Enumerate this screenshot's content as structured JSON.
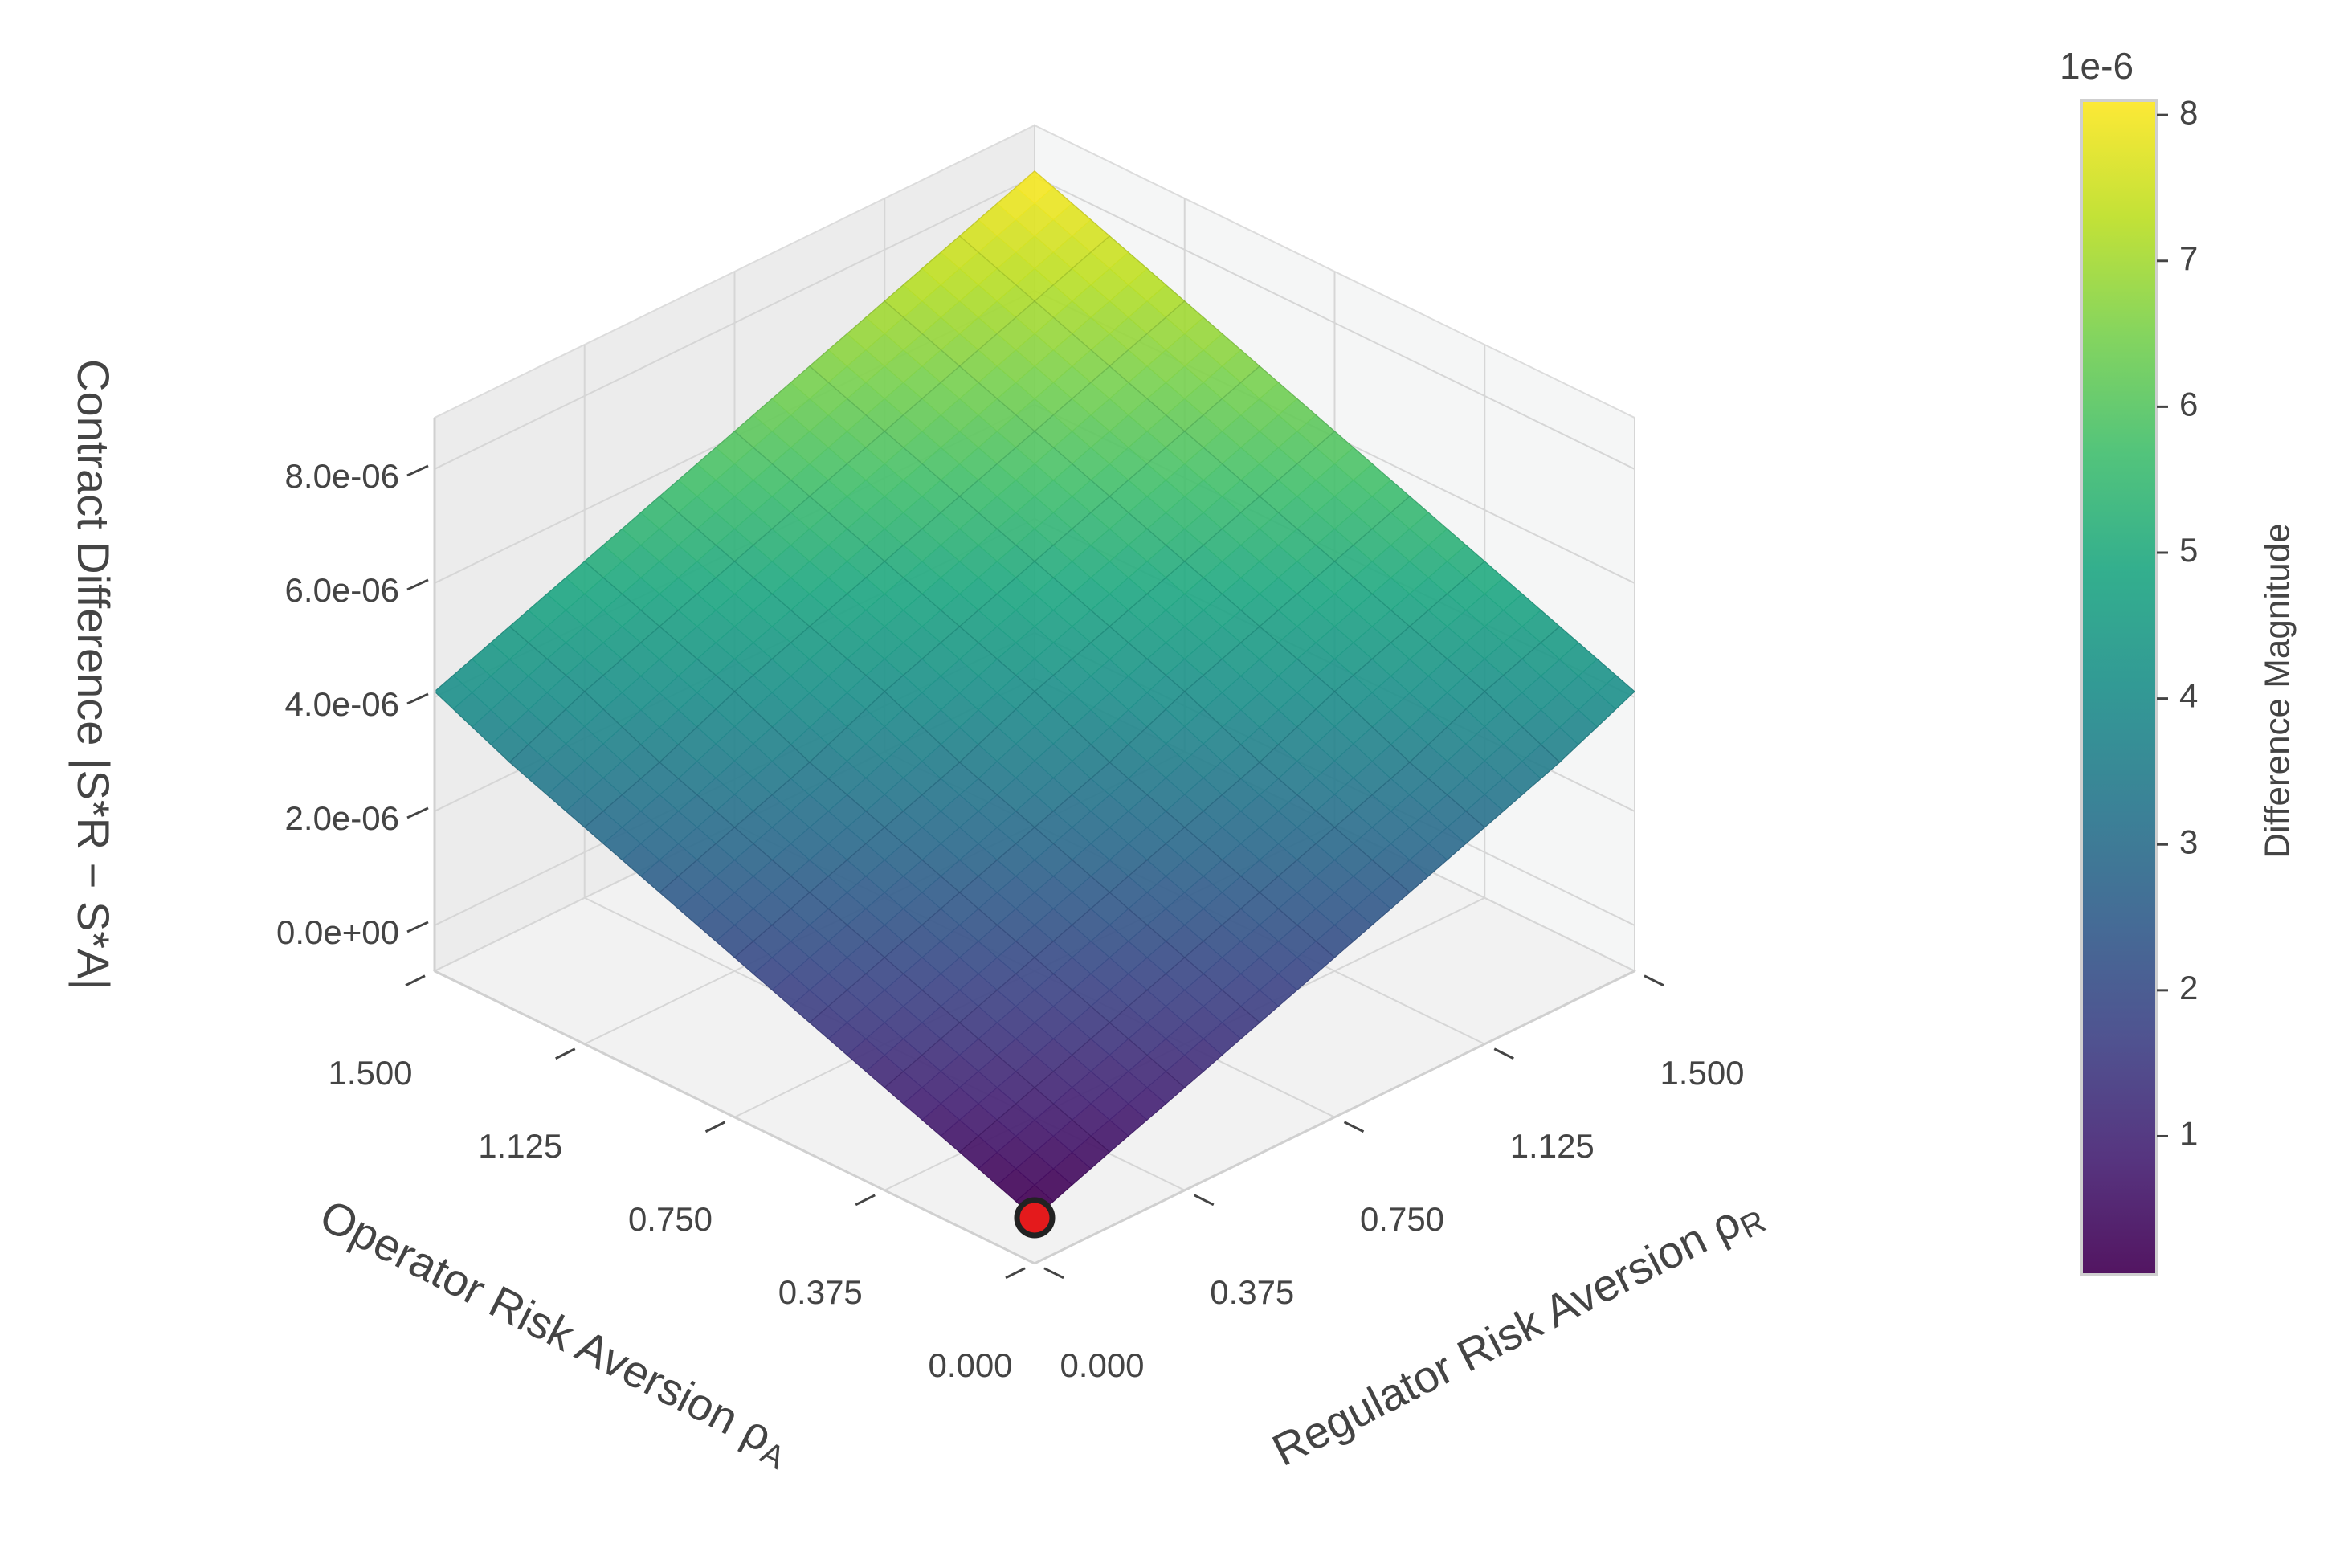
{
  "chart_data": {
    "type": "surface3d",
    "x_label": {
      "text": "Regulator Risk Aversion ρ",
      "subscript": "R"
    },
    "y_label": {
      "text": "Operator Risk Aversion ρ",
      "subscript": "A"
    },
    "z_label": "Contract Difference |S*R − S*A|",
    "x": [
      0,
      0.1875,
      0.375,
      0.5625,
      0.75,
      0.9375,
      1.125,
      1.3125,
      1.5
    ],
    "y": [
      0,
      0.1875,
      0.375,
      0.5625,
      0.75,
      0.9375,
      1.125,
      1.3125,
      1.5
    ],
    "z": [
      [
        0,
        5.1e-07,
        1e-06,
        1.5e-06,
        2e-06,
        2.5e-06,
        3e-06,
        3.5e-06,
        4.1e-06
      ],
      [
        5.1e-07,
        1e-06,
        1.5e-06,
        2e-06,
        2.5e-06,
        3e-06,
        3.5e-06,
        4.1e-06,
        4.6e-06
      ],
      [
        1e-06,
        1.5e-06,
        2e-06,
        2.5e-06,
        3e-06,
        3.5e-06,
        4.1e-06,
        4.6e-06,
        5.1e-06
      ],
      [
        1.5e-06,
        2e-06,
        2.5e-06,
        3e-06,
        3.5e-06,
        4.1e-06,
        4.6e-06,
        5.1e-06,
        5.6e-06
      ],
      [
        2e-06,
        2.5e-06,
        3e-06,
        3.5e-06,
        4.1e-06,
        4.6e-06,
        5.1e-06,
        5.6e-06,
        6.1e-06
      ],
      [
        2.5e-06,
        3e-06,
        3.5e-06,
        4.1e-06,
        4.6e-06,
        5.1e-06,
        5.6e-06,
        6.1e-06,
        6.6e-06
      ],
      [
        3e-06,
        3.5e-06,
        4.1e-06,
        4.6e-06,
        5.1e-06,
        5.6e-06,
        6.1e-06,
        6.6e-06,
        7.1e-06
      ],
      [
        3.5e-06,
        4.1e-06,
        4.6e-06,
        5.1e-06,
        5.6e-06,
        6.1e-06,
        6.6e-06,
        7.1e-06,
        7.6e-06
      ],
      [
        4.1e-06,
        4.6e-06,
        5.1e-06,
        5.6e-06,
        6.1e-06,
        6.6e-06,
        7.1e-06,
        7.6e-06,
        8.1e-06
      ]
    ],
    "xlim": [
      0,
      1.5
    ],
    "ylim": [
      0,
      1.5
    ],
    "zlim": [
      -8e-07,
      8.9e-06
    ],
    "xticks": [
      {
        "value": 0,
        "label": "0.000"
      },
      {
        "value": 0.375,
        "label": "0.375"
      },
      {
        "value": 0.75,
        "label": "0.750"
      },
      {
        "value": 1.125,
        "label": "1.125"
      },
      {
        "value": 1.5,
        "label": "1.500"
      }
    ],
    "yticks": [
      {
        "value": 0,
        "label": "0.000"
      },
      {
        "value": 0.375,
        "label": "0.375"
      },
      {
        "value": 0.75,
        "label": "0.750"
      },
      {
        "value": 1.125,
        "label": "1.125"
      },
      {
        "value": 1.5,
        "label": "1.500"
      }
    ],
    "zticks": [
      {
        "value": 0,
        "label": "0.0e+00"
      },
      {
        "value": 2e-06,
        "label": "2.0e-06"
      },
      {
        "value": 4e-06,
        "label": "4.0e-06"
      },
      {
        "value": 6e-06,
        "label": "6.0e-06"
      },
      {
        "value": 8e-06,
        "label": "8.0e-06"
      }
    ],
    "grid": true,
    "colormap": "viridis",
    "highlight": {
      "x": 0,
      "y": 0,
      "z": 0,
      "color": "#e41a1c"
    },
    "colorbar": {
      "label": "Difference Magnitude",
      "offset_text": "1e-6",
      "lim": [
        0.05,
        8.1
      ],
      "ticks": [
        1,
        2,
        3,
        4,
        5,
        6,
        7,
        8
      ]
    }
  }
}
